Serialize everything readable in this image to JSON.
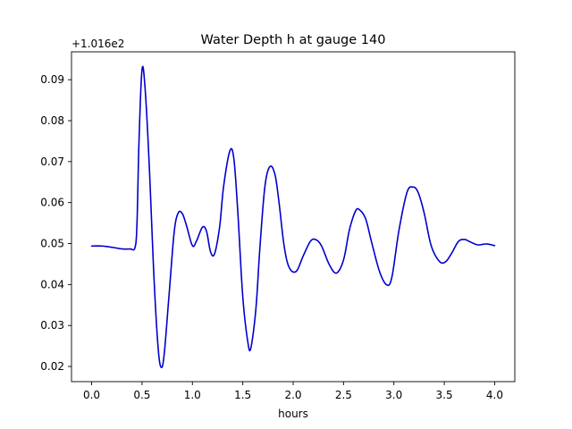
{
  "chart_data": {
    "type": "line",
    "title": "Water Depth h at gauge 140",
    "xlabel": "hours",
    "ylabel": "",
    "y_offset_label": "+1.016e2",
    "xlim": [
      -0.2,
      4.2
    ],
    "ylim": [
      0.0163,
      0.0968
    ],
    "x_ticks": [
      0.0,
      0.5,
      1.0,
      1.5,
      2.0,
      2.5,
      3.0,
      3.5,
      4.0
    ],
    "x_tick_labels": [
      "0.0",
      "0.5",
      "1.0",
      "1.5",
      "2.0",
      "2.5",
      "3.0",
      "3.5",
      "4.0"
    ],
    "y_ticks": [
      0.02,
      0.03,
      0.04,
      0.05,
      0.06,
      0.07,
      0.08,
      0.09
    ],
    "y_tick_labels": [
      "0.02",
      "0.03",
      "0.04",
      "0.05",
      "0.06",
      "0.07",
      "0.08",
      "0.09"
    ],
    "grid": false,
    "legend": "none",
    "series": [
      {
        "color": "#0000cc",
        "x": [
          0.0,
          0.1,
          0.2,
          0.3,
          0.38,
          0.43,
          0.45,
          0.47,
          0.5,
          0.53,
          0.57,
          0.62,
          0.66,
          0.69,
          0.72,
          0.77,
          0.82,
          0.86,
          0.9,
          0.94,
          1.0,
          1.04,
          1.1,
          1.14,
          1.18,
          1.22,
          1.27,
          1.31,
          1.37,
          1.41,
          1.45,
          1.5,
          1.55,
          1.58,
          1.63,
          1.67,
          1.72,
          1.77,
          1.82,
          1.86,
          1.91,
          1.96,
          2.03,
          2.1,
          2.17,
          2.22,
          2.28,
          2.36,
          2.43,
          2.5,
          2.56,
          2.62,
          2.66,
          2.72,
          2.78,
          2.86,
          2.93,
          2.98,
          3.05,
          3.13,
          3.19,
          3.24,
          3.3,
          3.37,
          3.45,
          3.51,
          3.57,
          3.64,
          3.7,
          3.75,
          3.83,
          3.92,
          4.0
        ],
        "y": [
          0.0494,
          0.0494,
          0.0491,
          0.0487,
          0.0487,
          0.049,
          0.055,
          0.075,
          0.0925,
          0.088,
          0.07,
          0.041,
          0.0245,
          0.0198,
          0.023,
          0.038,
          0.053,
          0.0575,
          0.0573,
          0.0545,
          0.0495,
          0.0506,
          0.054,
          0.053,
          0.048,
          0.0475,
          0.054,
          0.064,
          0.0725,
          0.071,
          0.058,
          0.037,
          0.026,
          0.0245,
          0.034,
          0.049,
          0.064,
          0.0688,
          0.0668,
          0.06,
          0.0495,
          0.0442,
          0.0432,
          0.047,
          0.0505,
          0.051,
          0.0495,
          0.0448,
          0.0428,
          0.046,
          0.0535,
          0.058,
          0.0582,
          0.056,
          0.0502,
          0.043,
          0.0399,
          0.0418,
          0.0532,
          0.0625,
          0.0638,
          0.0625,
          0.0575,
          0.0495,
          0.0457,
          0.0455,
          0.0475,
          0.0505,
          0.051,
          0.0505,
          0.0497,
          0.0499,
          0.0495
        ]
      }
    ]
  }
}
